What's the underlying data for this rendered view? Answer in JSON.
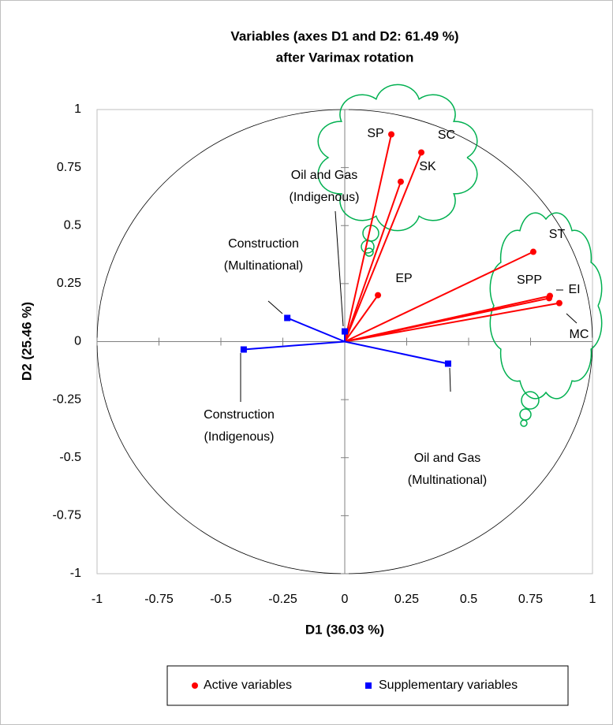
{
  "chart_data": {
    "type": "scatter",
    "title": [
      "Variables (axes D1 and D2: 61.49 %)",
      "after Varimax rotation"
    ],
    "xlabel": "D1 (36.03 %)",
    "ylabel": "D2 (25.46 %)",
    "xlim": [
      -1,
      1
    ],
    "ylim": [
      -1,
      1
    ],
    "xticks": [
      -1,
      -0.75,
      -0.5,
      -0.25,
      0,
      0.25,
      0.5,
      0.75,
      1
    ],
    "yticks": [
      -1,
      -0.75,
      -0.5,
      -0.25,
      0,
      0.25,
      0.5,
      0.75,
      1
    ],
    "series": [
      {
        "name": "Active variables",
        "color": "#ff0000",
        "marker": "circle",
        "labels": [
          [
            "SP"
          ],
          [
            "SC"
          ],
          [
            "SK"
          ],
          [
            "EP"
          ],
          [
            "ST"
          ],
          [
            "SPP"
          ],
          [
            "EI"
          ],
          [
            "MC"
          ]
        ],
        "x": [
          0.188,
          0.309,
          0.226,
          0.134,
          0.761,
          0.828,
          0.825,
          0.866
        ],
        "values": [
          0.893,
          0.815,
          0.689,
          0.2,
          0.387,
          0.197,
          0.187,
          0.166
        ]
      },
      {
        "name": "Supplementary variables",
        "color": "#0000ff",
        "marker": "square",
        "labels": [
          [
            "Construction",
            "(Multinational)"
          ],
          [
            "Oil and Gas",
            "(Indigenous)"
          ],
          [
            "Construction",
            "(Indigenous)"
          ],
          [
            "Oil and Gas",
            "(Multinational)"
          ]
        ],
        "x": [
          -0.232,
          0.0,
          -0.408,
          0.417
        ],
        "values": [
          0.102,
          0.044,
          -0.034,
          -0.095
        ]
      }
    ]
  }
}
